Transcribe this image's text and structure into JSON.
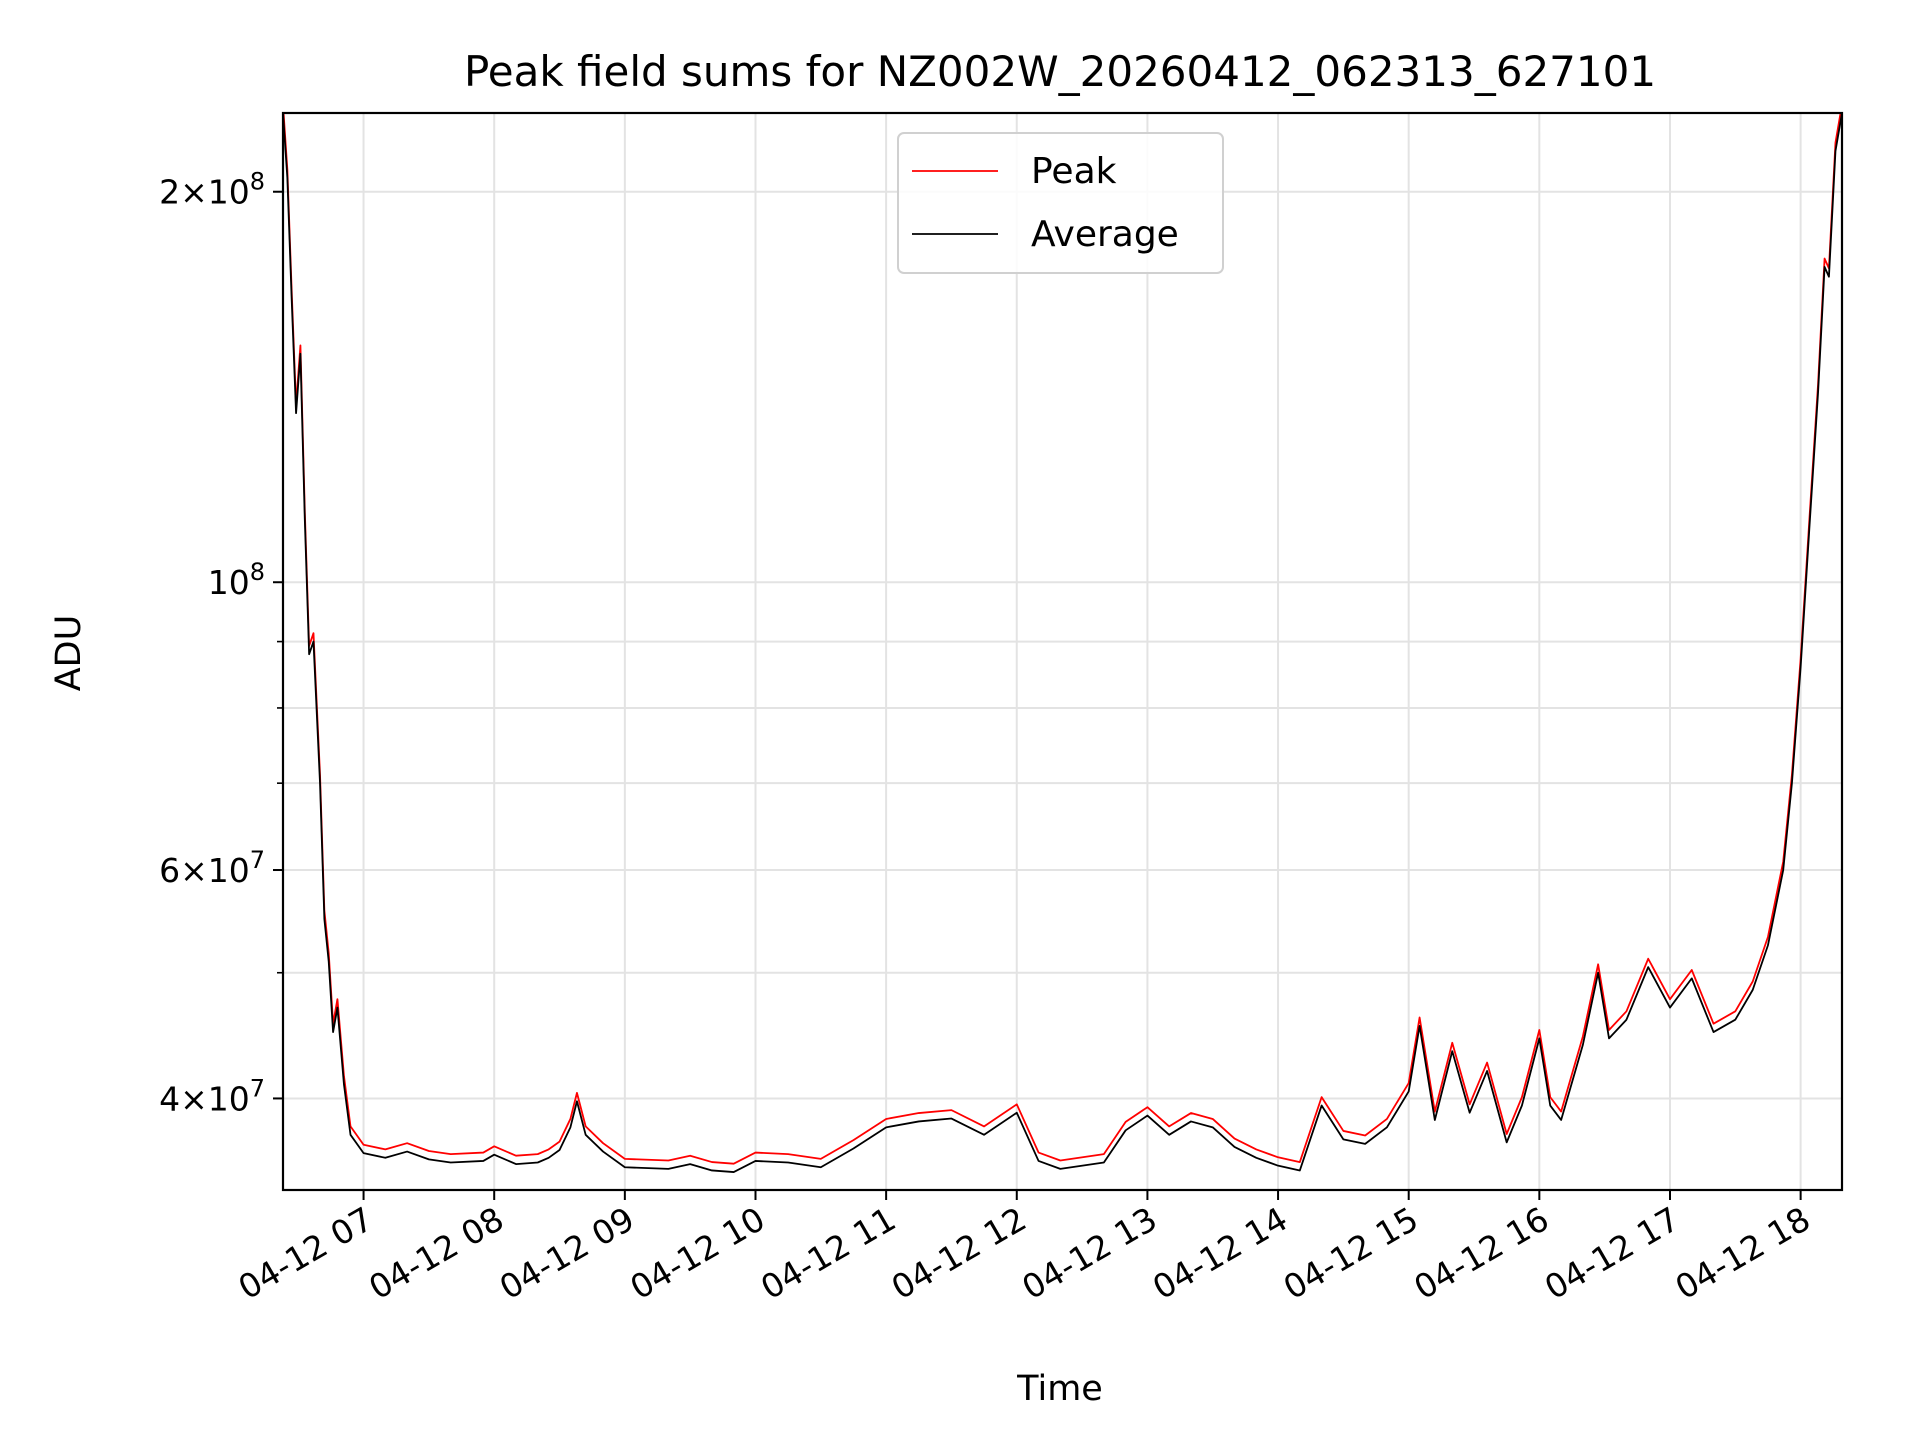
{
  "chart_data": {
    "type": "line",
    "title": "Peak field sums for NZ002W_20260412_062313_627101",
    "xlabel": "Time",
    "ylabel": "ADU",
    "yscale": "log",
    "ylim": [
      34000000,
      230000000
    ],
    "xlim": [
      "2026-04-12 06:23",
      "2026-04-12 18:19"
    ],
    "grid": true,
    "legend_position": "top-center",
    "x_ticks": [
      {
        "t": "2026-04-12 07:00",
        "label": "04-12 07"
      },
      {
        "t": "2026-04-12 08:00",
        "label": "04-12 08"
      },
      {
        "t": "2026-04-12 09:00",
        "label": "04-12 09"
      },
      {
        "t": "2026-04-12 10:00",
        "label": "04-12 10"
      },
      {
        "t": "2026-04-12 11:00",
        "label": "04-12 11"
      },
      {
        "t": "2026-04-12 12:00",
        "label": "04-12 12"
      },
      {
        "t": "2026-04-12 13:00",
        "label": "04-12 13"
      },
      {
        "t": "2026-04-12 14:00",
        "label": "04-12 14"
      },
      {
        "t": "2026-04-12 15:00",
        "label": "04-12 15"
      },
      {
        "t": "2026-04-12 16:00",
        "label": "04-12 16"
      },
      {
        "t": "2026-04-12 17:00",
        "label": "04-12 17"
      },
      {
        "t": "2026-04-12 18:00",
        "label": "04-12 18"
      }
    ],
    "y_ticks_major": [
      {
        "v": 40000000,
        "base": "4×10",
        "exp": "7"
      },
      {
        "v": 60000000,
        "base": "6×10",
        "exp": "7"
      },
      {
        "v": 100000000,
        "base": "10",
        "exp": "8"
      },
      {
        "v": 200000000,
        "base": "2×10",
        "exp": "8"
      }
    ],
    "y_ticks_minor": [
      50000000,
      70000000,
      80000000,
      90000000
    ],
    "series": [
      {
        "name": "Peak",
        "color": "#ff0000",
        "offset_ratio": 1.015,
        "points": [
          [
            "2026-04-12 06:23",
            230000000
          ],
          [
            "2026-04-12 06:25",
            205000000
          ],
          [
            "2026-04-12 06:27",
            165000000
          ],
          [
            "2026-04-12 06:29",
            135000000
          ],
          [
            "2026-04-12 06:31",
            150000000
          ],
          [
            "2026-04-12 06:33",
            112000000
          ],
          [
            "2026-04-12 06:35",
            88000000
          ],
          [
            "2026-04-12 06:37",
            90000000
          ],
          [
            "2026-04-12 06:40",
            70000000
          ],
          [
            "2026-04-12 06:42",
            55000000
          ],
          [
            "2026-04-12 06:44",
            51000000
          ],
          [
            "2026-04-12 06:46",
            45000000
          ],
          [
            "2026-04-12 06:48",
            47000000
          ],
          [
            "2026-04-12 06:51",
            41000000
          ],
          [
            "2026-04-12 06:54",
            37500000
          ],
          [
            "2026-04-12 07:00",
            36300000
          ],
          [
            "2026-04-12 07:10",
            36000000
          ],
          [
            "2026-04-12 07:20",
            36400000
          ],
          [
            "2026-04-12 07:30",
            35900000
          ],
          [
            "2026-04-12 07:40",
            35700000
          ],
          [
            "2026-04-12 07:55",
            35800000
          ],
          [
            "2026-04-12 08:00",
            36200000
          ],
          [
            "2026-04-12 08:10",
            35600000
          ],
          [
            "2026-04-12 08:20",
            35700000
          ],
          [
            "2026-04-12 08:25",
            36000000
          ],
          [
            "2026-04-12 08:30",
            36500000
          ],
          [
            "2026-04-12 08:35",
            38000000
          ],
          [
            "2026-04-12 08:38",
            39800000
          ],
          [
            "2026-04-12 08:42",
            37500000
          ],
          [
            "2026-04-12 08:50",
            36400000
          ],
          [
            "2026-04-12 09:00",
            35400000
          ],
          [
            "2026-04-12 09:20",
            35300000
          ],
          [
            "2026-04-12 09:30",
            35600000
          ],
          [
            "2026-04-12 09:40",
            35200000
          ],
          [
            "2026-04-12 09:50",
            35100000
          ],
          [
            "2026-04-12 10:00",
            35800000
          ],
          [
            "2026-04-12 10:15",
            35700000
          ],
          [
            "2026-04-12 10:30",
            35400000
          ],
          [
            "2026-04-12 10:45",
            36600000
          ],
          [
            "2026-04-12 11:00",
            38000000
          ],
          [
            "2026-04-12 11:15",
            38400000
          ],
          [
            "2026-04-12 11:30",
            38600000
          ],
          [
            "2026-04-12 11:45",
            37500000
          ],
          [
            "2026-04-12 12:00",
            39000000
          ],
          [
            "2026-04-12 12:10",
            35800000
          ],
          [
            "2026-04-12 12:20",
            35300000
          ],
          [
            "2026-04-12 12:40",
            35700000
          ],
          [
            "2026-04-12 12:50",
            37800000
          ],
          [
            "2026-04-12 13:00",
            38800000
          ],
          [
            "2026-04-12 13:10",
            37500000
          ],
          [
            "2026-04-12 13:20",
            38400000
          ],
          [
            "2026-04-12 13:30",
            38000000
          ],
          [
            "2026-04-12 13:40",
            36700000
          ],
          [
            "2026-04-12 13:50",
            36000000
          ],
          [
            "2026-04-12 14:00",
            35500000
          ],
          [
            "2026-04-12 14:10",
            35200000
          ],
          [
            "2026-04-12 14:20",
            39500000
          ],
          [
            "2026-04-12 14:30",
            37200000
          ],
          [
            "2026-04-12 14:40",
            36900000
          ],
          [
            "2026-04-12 14:50",
            38000000
          ],
          [
            "2026-04-12 15:00",
            40500000
          ],
          [
            "2026-04-12 15:05",
            45500000
          ],
          [
            "2026-04-12 15:12",
            38500000
          ],
          [
            "2026-04-12 15:20",
            43500000
          ],
          [
            "2026-04-12 15:28",
            39000000
          ],
          [
            "2026-04-12 15:36",
            42000000
          ],
          [
            "2026-04-12 15:45",
            37000000
          ],
          [
            "2026-04-12 15:52",
            39500000
          ],
          [
            "2026-04-12 16:00",
            44500000
          ],
          [
            "2026-04-12 16:05",
            39500000
          ],
          [
            "2026-04-12 16:10",
            38500000
          ],
          [
            "2026-04-12 16:20",
            44000000
          ],
          [
            "2026-04-12 16:27",
            50000000
          ],
          [
            "2026-04-12 16:32",
            44500000
          ],
          [
            "2026-04-12 16:40",
            46000000
          ],
          [
            "2026-04-12 16:50",
            50500000
          ],
          [
            "2026-04-12 17:00",
            47000000
          ],
          [
            "2026-04-12 17:10",
            49500000
          ],
          [
            "2026-04-12 17:20",
            45000000
          ],
          [
            "2026-04-12 17:30",
            46000000
          ],
          [
            "2026-04-12 17:38",
            48500000
          ],
          [
            "2026-04-12 17:45",
            52500000
          ],
          [
            "2026-04-12 17:52",
            60000000
          ],
          [
            "2026-04-12 17:56",
            70000000
          ],
          [
            "2026-04-12 18:00",
            86000000
          ],
          [
            "2026-04-12 18:04",
            110000000
          ],
          [
            "2026-04-12 18:08",
            140000000
          ],
          [
            "2026-04-12 18:11",
            175000000
          ],
          [
            "2026-04-12 18:13",
            172000000
          ],
          [
            "2026-04-12 18:16",
            215000000
          ],
          [
            "2026-04-12 18:19",
            230000000
          ]
        ]
      },
      {
        "name": "Average",
        "color": "#000000",
        "offset_ratio": 1.0,
        "points": [
          [
            "2026-04-12 06:23",
            230000000
          ],
          [
            "2026-04-12 06:25",
            205000000
          ],
          [
            "2026-04-12 06:27",
            165000000
          ],
          [
            "2026-04-12 06:29",
            135000000
          ],
          [
            "2026-04-12 06:31",
            150000000
          ],
          [
            "2026-04-12 06:33",
            112000000
          ],
          [
            "2026-04-12 06:35",
            88000000
          ],
          [
            "2026-04-12 06:37",
            90000000
          ],
          [
            "2026-04-12 06:40",
            70000000
          ],
          [
            "2026-04-12 06:42",
            55000000
          ],
          [
            "2026-04-12 06:44",
            51000000
          ],
          [
            "2026-04-12 06:46",
            45000000
          ],
          [
            "2026-04-12 06:48",
            47000000
          ],
          [
            "2026-04-12 06:51",
            41000000
          ],
          [
            "2026-04-12 06:54",
            37500000
          ],
          [
            "2026-04-12 07:00",
            36300000
          ],
          [
            "2026-04-12 07:10",
            36000000
          ],
          [
            "2026-04-12 07:20",
            36400000
          ],
          [
            "2026-04-12 07:30",
            35900000
          ],
          [
            "2026-04-12 07:40",
            35700000
          ],
          [
            "2026-04-12 07:55",
            35800000
          ],
          [
            "2026-04-12 08:00",
            36200000
          ],
          [
            "2026-04-12 08:10",
            35600000
          ],
          [
            "2026-04-12 08:20",
            35700000
          ],
          [
            "2026-04-12 08:25",
            36000000
          ],
          [
            "2026-04-12 08:30",
            36500000
          ],
          [
            "2026-04-12 08:35",
            38000000
          ],
          [
            "2026-04-12 08:38",
            39800000
          ],
          [
            "2026-04-12 08:42",
            37500000
          ],
          [
            "2026-04-12 08:50",
            36400000
          ],
          [
            "2026-04-12 09:00",
            35400000
          ],
          [
            "2026-04-12 09:20",
            35300000
          ],
          [
            "2026-04-12 09:30",
            35600000
          ],
          [
            "2026-04-12 09:40",
            35200000
          ],
          [
            "2026-04-12 09:50",
            35100000
          ],
          [
            "2026-04-12 10:00",
            35800000
          ],
          [
            "2026-04-12 10:15",
            35700000
          ],
          [
            "2026-04-12 10:30",
            35400000
          ],
          [
            "2026-04-12 10:45",
            36600000
          ],
          [
            "2026-04-12 11:00",
            38000000
          ],
          [
            "2026-04-12 11:15",
            38400000
          ],
          [
            "2026-04-12 11:30",
            38600000
          ],
          [
            "2026-04-12 11:45",
            37500000
          ],
          [
            "2026-04-12 12:00",
            39000000
          ],
          [
            "2026-04-12 12:10",
            35800000
          ],
          [
            "2026-04-12 12:20",
            35300000
          ],
          [
            "2026-04-12 12:40",
            35700000
          ],
          [
            "2026-04-12 12:50",
            37800000
          ],
          [
            "2026-04-12 13:00",
            38800000
          ],
          [
            "2026-04-12 13:10",
            37500000
          ],
          [
            "2026-04-12 13:20",
            38400000
          ],
          [
            "2026-04-12 13:30",
            38000000
          ],
          [
            "2026-04-12 13:40",
            36700000
          ],
          [
            "2026-04-12 13:50",
            36000000
          ],
          [
            "2026-04-12 14:00",
            35500000
          ],
          [
            "2026-04-12 14:10",
            35200000
          ],
          [
            "2026-04-12 14:20",
            39500000
          ],
          [
            "2026-04-12 14:30",
            37200000
          ],
          [
            "2026-04-12 14:40",
            36900000
          ],
          [
            "2026-04-12 14:50",
            38000000
          ],
          [
            "2026-04-12 15:00",
            40500000
          ],
          [
            "2026-04-12 15:05",
            45500000
          ],
          [
            "2026-04-12 15:12",
            38500000
          ],
          [
            "2026-04-12 15:20",
            43500000
          ],
          [
            "2026-04-12 15:28",
            39000000
          ],
          [
            "2026-04-12 15:36",
            42000000
          ],
          [
            "2026-04-12 15:45",
            37000000
          ],
          [
            "2026-04-12 15:52",
            39500000
          ],
          [
            "2026-04-12 16:00",
            44500000
          ],
          [
            "2026-04-12 16:05",
            39500000
          ],
          [
            "2026-04-12 16:10",
            38500000
          ],
          [
            "2026-04-12 16:20",
            44000000
          ],
          [
            "2026-04-12 16:27",
            50000000
          ],
          [
            "2026-04-12 16:32",
            44500000
          ],
          [
            "2026-04-12 16:40",
            46000000
          ],
          [
            "2026-04-12 16:50",
            50500000
          ],
          [
            "2026-04-12 17:00",
            47000000
          ],
          [
            "2026-04-12 17:10",
            49500000
          ],
          [
            "2026-04-12 17:20",
            45000000
          ],
          [
            "2026-04-12 17:30",
            46000000
          ],
          [
            "2026-04-12 17:38",
            48500000
          ],
          [
            "2026-04-12 17:45",
            52500000
          ],
          [
            "2026-04-12 17:52",
            60000000
          ],
          [
            "2026-04-12 17:56",
            70000000
          ],
          [
            "2026-04-12 18:00",
            86000000
          ],
          [
            "2026-04-12 18:04",
            110000000
          ],
          [
            "2026-04-12 18:08",
            140000000
          ],
          [
            "2026-04-12 18:11",
            175000000
          ],
          [
            "2026-04-12 18:13",
            172000000
          ],
          [
            "2026-04-12 18:16",
            215000000
          ],
          [
            "2026-04-12 18:19",
            230000000
          ]
        ]
      }
    ]
  }
}
